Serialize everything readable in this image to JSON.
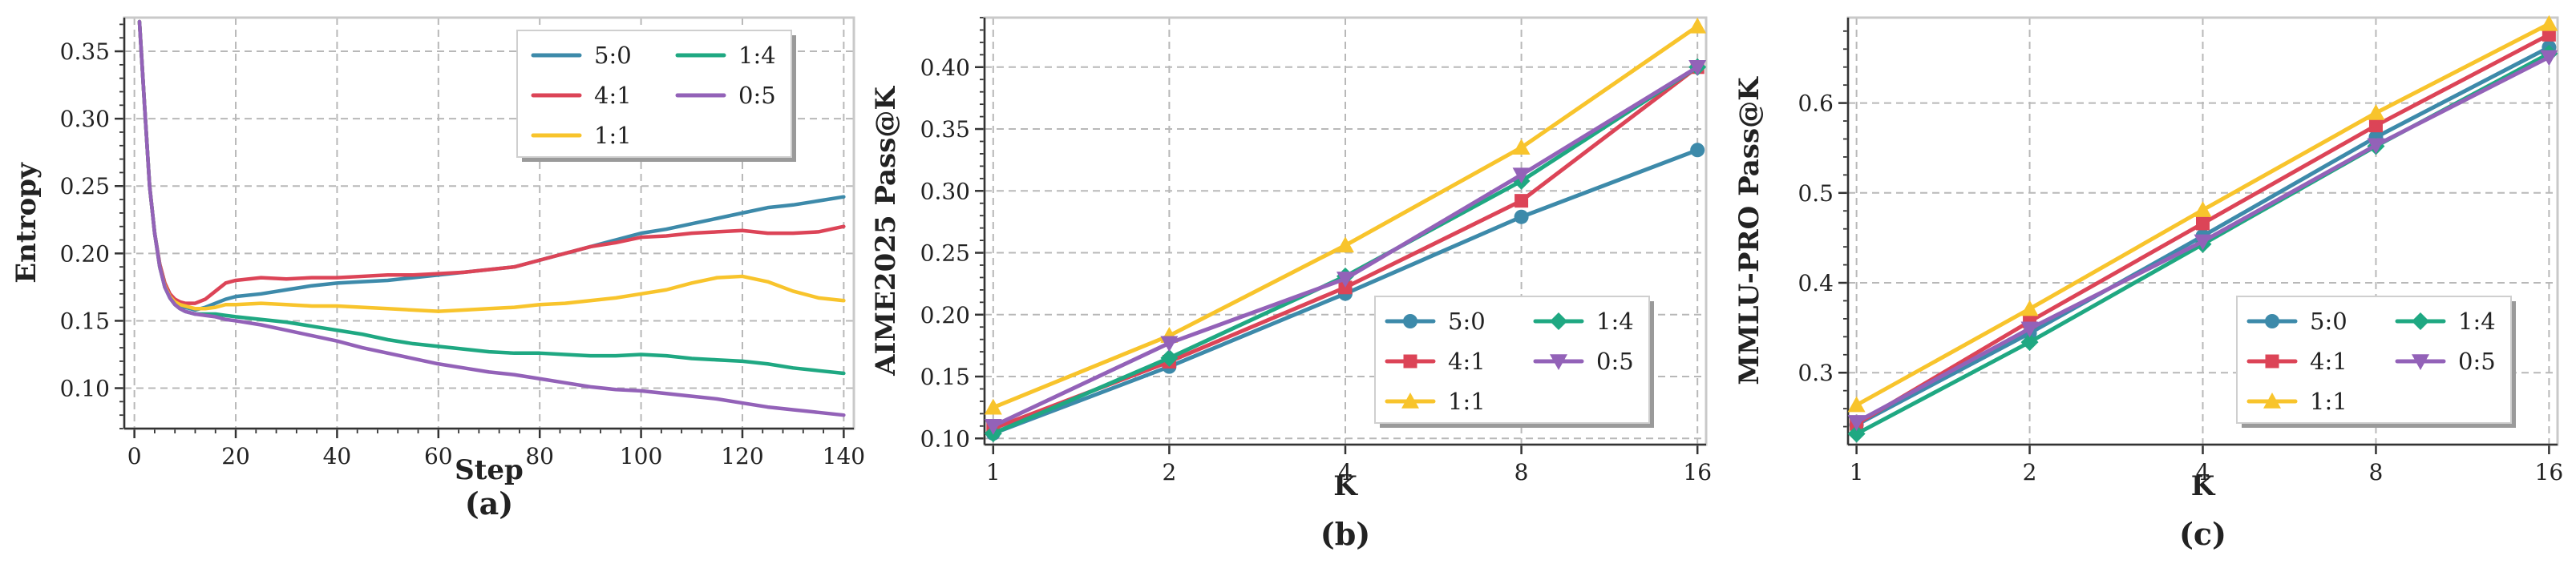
{
  "colors": {
    "5:0": "#3d8aaa",
    "4:1": "#dc4457",
    "1:1": "#f8c42c",
    "1:4": "#1fa882",
    "0:5": "#9362b8"
  },
  "legend_order": [
    "5:0",
    "4:1",
    "1:1",
    "1:4",
    "0:5"
  ],
  "chart_data": [
    {
      "type": "line",
      "panel_label": "(a)",
      "xlabel": "Step",
      "ylabel": "Entropy",
      "xlim": [
        -2,
        142
      ],
      "ylim": [
        0.07,
        0.375
      ],
      "xticks": [
        "0",
        "20",
        "40",
        "60",
        "80",
        "100",
        "120",
        "140"
      ],
      "yticks": [
        "0.10",
        "0.15",
        "0.20",
        "0.25",
        "0.30",
        "0.35"
      ],
      "grid": true,
      "legend_position": "top-right",
      "x": [
        1,
        2,
        3,
        4,
        5,
        6,
        7,
        8,
        9,
        10,
        12,
        14,
        16,
        18,
        20,
        25,
        30,
        35,
        40,
        45,
        50,
        55,
        60,
        65,
        70,
        75,
        80,
        85,
        90,
        95,
        100,
        105,
        110,
        115,
        120,
        125,
        130,
        135,
        140
      ],
      "series": [
        {
          "name": "5:0",
          "values": [
            0.372,
            0.31,
            0.25,
            0.215,
            0.192,
            0.178,
            0.17,
            0.165,
            0.162,
            0.16,
            0.158,
            0.16,
            0.163,
            0.166,
            0.168,
            0.17,
            0.173,
            0.176,
            0.178,
            0.179,
            0.18,
            0.182,
            0.184,
            0.186,
            0.188,
            0.19,
            0.195,
            0.2,
            0.205,
            0.21,
            0.215,
            0.218,
            0.222,
            0.226,
            0.23,
            0.234,
            0.236,
            0.239,
            0.242
          ]
        },
        {
          "name": "4:1",
          "values": [
            0.372,
            0.31,
            0.25,
            0.215,
            0.192,
            0.178,
            0.17,
            0.166,
            0.164,
            0.163,
            0.163,
            0.166,
            0.172,
            0.178,
            0.18,
            0.182,
            0.181,
            0.182,
            0.182,
            0.183,
            0.184,
            0.184,
            0.185,
            0.186,
            0.188,
            0.19,
            0.195,
            0.2,
            0.205,
            0.208,
            0.212,
            0.213,
            0.215,
            0.216,
            0.217,
            0.215,
            0.215,
            0.216,
            0.22
          ]
        },
        {
          "name": "1:1",
          "values": [
            0.372,
            0.31,
            0.25,
            0.215,
            0.19,
            0.176,
            0.168,
            0.164,
            0.162,
            0.161,
            0.159,
            0.159,
            0.16,
            0.162,
            0.162,
            0.163,
            0.162,
            0.161,
            0.161,
            0.16,
            0.159,
            0.158,
            0.157,
            0.158,
            0.159,
            0.16,
            0.162,
            0.163,
            0.165,
            0.167,
            0.17,
            0.173,
            0.178,
            0.182,
            0.183,
            0.179,
            0.172,
            0.167,
            0.165
          ]
        },
        {
          "name": "1:4",
          "values": [
            0.372,
            0.31,
            0.25,
            0.215,
            0.19,
            0.175,
            0.167,
            0.162,
            0.159,
            0.157,
            0.155,
            0.155,
            0.155,
            0.154,
            0.153,
            0.151,
            0.149,
            0.146,
            0.143,
            0.14,
            0.136,
            0.133,
            0.131,
            0.129,
            0.127,
            0.126,
            0.126,
            0.125,
            0.124,
            0.124,
            0.125,
            0.124,
            0.122,
            0.121,
            0.12,
            0.118,
            0.115,
            0.113,
            0.111
          ]
        },
        {
          "name": "0:5",
          "values": [
            0.372,
            0.31,
            0.25,
            0.215,
            0.19,
            0.175,
            0.167,
            0.162,
            0.159,
            0.157,
            0.155,
            0.154,
            0.153,
            0.151,
            0.15,
            0.147,
            0.143,
            0.139,
            0.135,
            0.13,
            0.126,
            0.122,
            0.118,
            0.115,
            0.112,
            0.11,
            0.107,
            0.104,
            0.101,
            0.099,
            0.098,
            0.096,
            0.094,
            0.092,
            0.089,
            0.086,
            0.084,
            0.082,
            0.08
          ]
        }
      ]
    },
    {
      "type": "line",
      "panel_label": "(b)",
      "xlabel": "K",
      "ylabel": "AIME2025 Pass@K",
      "xscale": "log2",
      "x": [
        1,
        2,
        4,
        8,
        16
      ],
      "xticks": [
        "1",
        "2",
        "4",
        "8",
        "16"
      ],
      "ylim": [
        0.095,
        0.44
      ],
      "yticks": [
        "0.10",
        "0.15",
        "0.20",
        "0.25",
        "0.30",
        "0.35",
        "0.40"
      ],
      "grid": true,
      "legend_position": "lower-right",
      "series": [
        {
          "name": "5:0",
          "marker": "circle",
          "values": [
            0.104,
            0.158,
            0.217,
            0.279,
            0.333
          ]
        },
        {
          "name": "4:1",
          "marker": "square",
          "values": [
            0.108,
            0.162,
            0.222,
            0.292,
            0.4
          ]
        },
        {
          "name": "1:1",
          "marker": "triangle-up",
          "values": [
            0.125,
            0.183,
            0.256,
            0.335,
            0.433
          ]
        },
        {
          "name": "1:4",
          "marker": "diamond",
          "values": [
            0.104,
            0.165,
            0.231,
            0.308,
            0.4
          ]
        },
        {
          "name": "0:5",
          "marker": "triangle-down",
          "values": [
            0.11,
            0.177,
            0.229,
            0.313,
            0.4
          ]
        }
      ]
    },
    {
      "type": "line",
      "panel_label": "(c)",
      "xlabel": "K",
      "ylabel": "MMLU-PRO Pass@K",
      "xscale": "log2",
      "x": [
        1,
        2,
        4,
        8,
        16
      ],
      "xticks": [
        "1",
        "2",
        "4",
        "8",
        "16"
      ],
      "ylim": [
        0.22,
        0.695
      ],
      "yticks": [
        "0.3",
        "0.4",
        "0.5",
        "0.6"
      ],
      "grid": true,
      "legend_position": "lower-right",
      "series": [
        {
          "name": "5:0",
          "marker": "circle",
          "values": [
            0.242,
            0.344,
            0.452,
            0.562,
            0.662
          ]
        },
        {
          "name": "4:1",
          "marker": "square",
          "values": [
            0.243,
            0.357,
            0.466,
            0.575,
            0.676
          ]
        },
        {
          "name": "1:1",
          "marker": "triangle-up",
          "values": [
            0.264,
            0.371,
            0.481,
            0.589,
            0.688
          ]
        },
        {
          "name": "1:4",
          "marker": "diamond",
          "values": [
            0.232,
            0.334,
            0.443,
            0.552,
            0.655
          ]
        },
        {
          "name": "0:5",
          "marker": "triangle-down",
          "values": [
            0.245,
            0.349,
            0.446,
            0.553,
            0.651
          ]
        }
      ]
    }
  ]
}
